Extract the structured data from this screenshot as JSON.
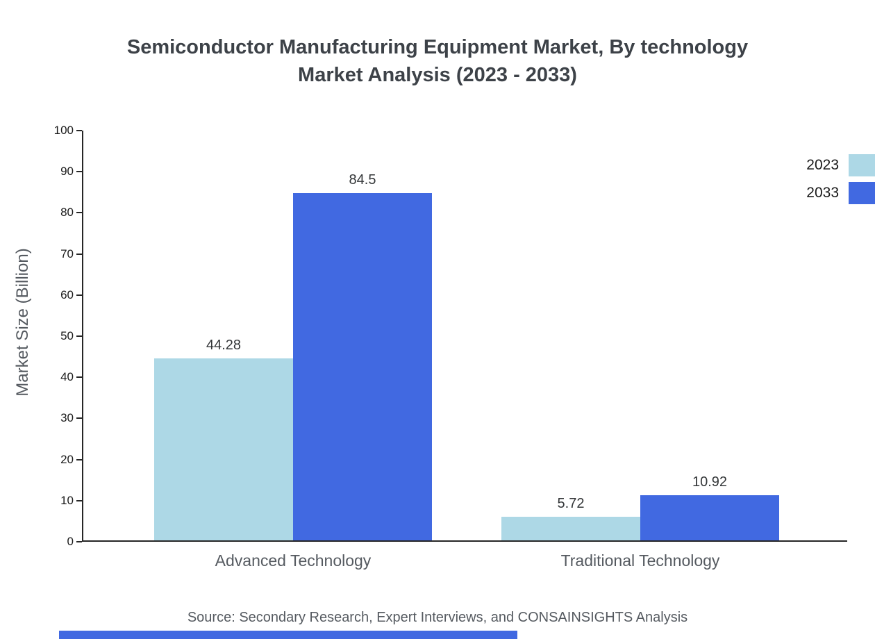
{
  "title": {
    "line1": "Semiconductor Manufacturing Equipment Market, By technology",
    "line2": "Market Analysis (2023 - 2033)"
  },
  "chart_data": {
    "type": "bar",
    "categories": [
      "Advanced Technology",
      "Traditional Technology"
    ],
    "series": [
      {
        "name": "2023",
        "color": "#add8e6",
        "values": [
          44.28,
          5.72
        ]
      },
      {
        "name": "2033",
        "color": "#4169e1",
        "values": [
          84.5,
          10.92
        ]
      }
    ],
    "title": "Semiconductor Manufacturing Equipment Market, By technology Market Analysis (2023 - 2033)",
    "xlabel": "",
    "ylabel": "Market Size (Billion)",
    "ylim": [
      0,
      100
    ],
    "ytick_step": 10,
    "grid": false,
    "legend_position": "top-right",
    "value_labels": [
      "44.28",
      "84.5",
      "5.72",
      "10.92"
    ]
  },
  "footer": {
    "source": "Source: Secondary Research, Expert Interviews, and CONSAINSIGHTS Analysis",
    "accent_color": "#4169e1"
  }
}
